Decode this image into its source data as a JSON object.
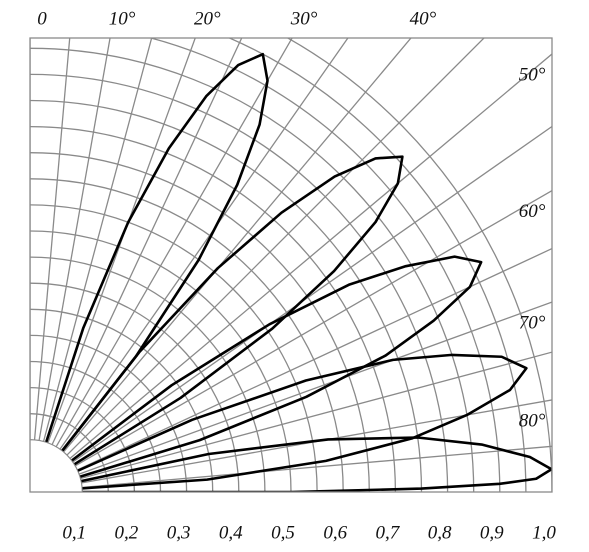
{
  "chart_data": {
    "type": "polar",
    "xlim": [
      0,
      90
    ],
    "xticks": [
      0,
      {
        "value": 10,
        "label": "10°"
      },
      {
        "value": 20,
        "label": "20°"
      },
      {
        "value": 30,
        "label": "30°"
      },
      {
        "value": 40,
        "label": "40°"
      },
      {
        "value": 50,
        "label": "50°"
      },
      {
        "value": 60,
        "label": "60°"
      },
      {
        "value": 70,
        "label": "70°"
      },
      {
        "value": 80,
        "label": "80°"
      }
    ],
    "ylim": [
      0,
      1
    ],
    "yticks": [
      {
        "value": 0.1,
        "label": "0,1"
      },
      {
        "value": 0.2,
        "label": "0,2"
      },
      {
        "value": 0.3,
        "label": "0,3"
      },
      {
        "value": 0.4,
        "label": "0,4"
      },
      {
        "value": 0.5,
        "label": "0,5"
      },
      {
        "value": 0.6,
        "label": "0,6"
      },
      {
        "value": 0.7,
        "label": "0,7"
      },
      {
        "value": 0.8,
        "label": "0,8"
      },
      {
        "value": 0.9,
        "label": "0,9"
      },
      {
        "value": 1.0,
        "label": "1,0"
      }
    ],
    "grid": true,
    "series": [
      {
        "color": "#000000",
        "x": [
          16,
          18,
          20,
          22,
          24,
          26,
          28,
          30,
          32,
          34,
          36,
          38,
          40
        ],
        "values": [
          0,
          0.33,
          0.55,
          0.71,
          0.83,
          0.91,
          0.95,
          0.91,
          0.83,
          0.71,
          0.55,
          0.33,
          0
        ]
      },
      {
        "color": "#000000",
        "x": [
          36,
          38,
          40,
          42,
          44,
          46,
          48,
          50,
          52,
          54,
          56,
          58,
          60
        ],
        "values": [
          0,
          0.34,
          0.56,
          0.72,
          0.84,
          0.92,
          0.96,
          0.92,
          0.84,
          0.72,
          0.56,
          0.34,
          0
        ]
      },
      {
        "color": "#000000",
        "x": [
          51,
          53,
          55,
          57,
          59,
          61,
          63,
          65,
          67,
          69,
          71,
          73,
          75
        ],
        "values": [
          0,
          0.34,
          0.56,
          0.73,
          0.84,
          0.93,
          0.97,
          0.93,
          0.84,
          0.73,
          0.56,
          0.34,
          0
        ]
      },
      {
        "color": "#000000",
        "x": [
          64,
          66,
          68,
          70,
          72,
          74,
          76,
          78,
          80,
          82,
          84,
          86,
          88
        ],
        "values": [
          0,
          0.34,
          0.57,
          0.74,
          0.85,
          0.94,
          0.98,
          0.94,
          0.85,
          0.74,
          0.57,
          0.34,
          0
        ]
      },
      {
        "color": "#000000",
        "x": [
          76,
          78,
          80,
          82,
          84,
          86,
          87.5,
          88.5,
          89,
          89.5,
          90,
          90,
          90
        ],
        "values": [
          0,
          0.35,
          0.58,
          0.75,
          0.87,
          0.96,
          1.0,
          0.97,
          0.9,
          0.75,
          0.5,
          0.25,
          0
        ]
      }
    ]
  }
}
